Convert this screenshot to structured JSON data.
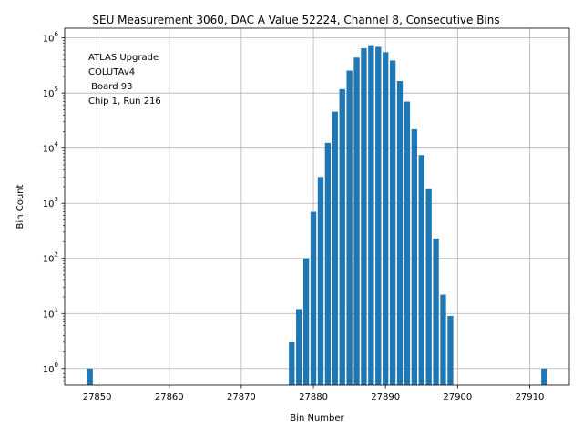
{
  "chart_data": {
    "type": "bar",
    "title": "SEU Measurement 3060, DAC A Value 52224, Channel 8, Consecutive Bins",
    "xlabel": "Bin Number",
    "ylabel": "Bin Count",
    "yscale": "log",
    "xlim": [
      27845.5,
      27915.5
    ],
    "ylim": [
      0.5,
      1500000
    ],
    "grid": true,
    "color": "#1f77b4",
    "annotation": [
      "ATLAS Upgrade",
      "COLUTAv4",
      " Board 93",
      "Chip 1, Run 216"
    ],
    "x_ticks": [
      27850,
      27860,
      27870,
      27880,
      27890,
      27900,
      27910
    ],
    "x_tick_labels": [
      "27850",
      "27860",
      "27870",
      "27880",
      "27890",
      "27900",
      "27910"
    ],
    "y_ticks": [
      1,
      10,
      100,
      1000,
      10000,
      100000,
      1000000
    ],
    "y_tick_labels": [
      {
        "base": "10",
        "exp": "0"
      },
      {
        "base": "10",
        "exp": "1"
      },
      {
        "base": "10",
        "exp": "2"
      },
      {
        "base": "10",
        "exp": "3"
      },
      {
        "base": "10",
        "exp": "4"
      },
      {
        "base": "10",
        "exp": "5"
      },
      {
        "base": "10",
        "exp": "6"
      }
    ],
    "bars": [
      {
        "x": 27849,
        "y": 1
      },
      {
        "x": 27877,
        "y": 3
      },
      {
        "x": 27878,
        "y": 12
      },
      {
        "x": 27879,
        "y": 100
      },
      {
        "x": 27880,
        "y": 700
      },
      {
        "x": 27881,
        "y": 3000
      },
      {
        "x": 27882,
        "y": 12500
      },
      {
        "x": 27883,
        "y": 46000
      },
      {
        "x": 27884,
        "y": 118000
      },
      {
        "x": 27885,
        "y": 255000
      },
      {
        "x": 27886,
        "y": 440000
      },
      {
        "x": 27887,
        "y": 650000
      },
      {
        "x": 27888,
        "y": 740000
      },
      {
        "x": 27889,
        "y": 690000
      },
      {
        "x": 27890,
        "y": 550000
      },
      {
        "x": 27891,
        "y": 390000
      },
      {
        "x": 27892,
        "y": 165000
      },
      {
        "x": 27893,
        "y": 70000
      },
      {
        "x": 27894,
        "y": 22000
      },
      {
        "x": 27895,
        "y": 7500
      },
      {
        "x": 27896,
        "y": 1800
      },
      {
        "x": 27897,
        "y": 230
      },
      {
        "x": 27898,
        "y": 22
      },
      {
        "x": 27899,
        "y": 9
      },
      {
        "x": 27912,
        "y": 1
      }
    ]
  }
}
